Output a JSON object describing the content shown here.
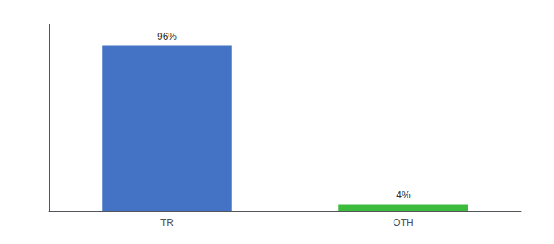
{
  "chart_data": {
    "type": "bar",
    "categories": [
      "TR",
      "OTH"
    ],
    "values": [
      96,
      4
    ],
    "value_labels": [
      "96%",
      "4%"
    ],
    "colors": [
      "#4472c4",
      "#3dbb3d"
    ],
    "ylim": [
      0,
      108
    ],
    "yticks": [],
    "grid": false,
    "data_labels": true,
    "tick_labels": "x"
  }
}
